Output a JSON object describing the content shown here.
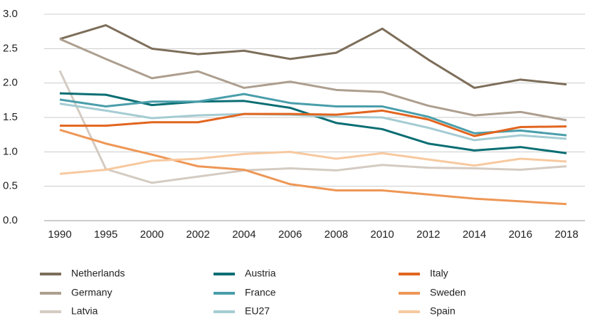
{
  "chart_data": {
    "type": "line",
    "categories": [
      "1990",
      "1995",
      "2000",
      "2002",
      "2004",
      "2006",
      "2008",
      "2010",
      "2012",
      "2014",
      "2016",
      "2018"
    ],
    "ylim": [
      0,
      3
    ],
    "yticks": [
      {
        "value": 0,
        "label": "0.0"
      },
      0.5,
      {
        "value": 1,
        "label": "1.0"
      },
      1.5,
      {
        "value": 2,
        "label": "2.0"
      },
      2.5,
      {
        "value": 3,
        "label": "3.0"
      }
    ],
    "grid": true,
    "series": [
      {
        "name": "Netherlands",
        "color": "#7d6e5a",
        "values": [
          2.64,
          2.84,
          2.5,
          2.42,
          2.47,
          2.35,
          2.44,
          2.79,
          2.34,
          1.93,
          2.05,
          1.98
        ]
      },
      {
        "name": "Germany",
        "color": "#ad9f8f",
        "values": [
          2.64,
          2.35,
          2.07,
          2.17,
          1.93,
          2.02,
          1.9,
          1.87,
          1.67,
          1.53,
          1.58,
          1.46
        ]
      },
      {
        "name": "Latvia",
        "color": "#d4cbc2",
        "values": [
          2.18,
          0.75,
          0.55,
          0.64,
          0.73,
          0.76,
          0.73,
          0.81,
          0.77,
          0.76,
          0.74,
          0.79
        ]
      },
      {
        "name": "Austria",
        "color": "#0a6e73",
        "values": [
          1.85,
          1.83,
          1.68,
          1.73,
          1.74,
          1.64,
          1.42,
          1.33,
          1.12,
          1.02,
          1.07,
          0.98
        ]
      },
      {
        "name": "France",
        "color": "#4a9eab",
        "values": [
          1.76,
          1.66,
          1.73,
          1.73,
          1.84,
          1.71,
          1.66,
          1.66,
          1.51,
          1.27,
          1.31,
          1.24
        ]
      },
      {
        "name": "EU27",
        "color": "#a5ccd3",
        "values": [
          1.7,
          1.6,
          1.49,
          1.53,
          1.55,
          1.54,
          1.51,
          1.5,
          1.35,
          1.17,
          1.24,
          1.19
        ]
      },
      {
        "name": "Italy",
        "color": "#e2651f",
        "values": [
          1.38,
          1.38,
          1.43,
          1.43,
          1.55,
          1.55,
          1.54,
          1.6,
          1.47,
          1.23,
          1.36,
          1.37
        ]
      },
      {
        "name": "Sweden",
        "color": "#ee9756",
        "values": [
          1.32,
          1.12,
          0.96,
          0.79,
          0.74,
          0.53,
          0.44,
          0.44,
          0.38,
          0.32,
          0.28,
          0.24
        ]
      },
      {
        "name": "Spain",
        "color": "#f7c9a0",
        "values": [
          0.68,
          0.74,
          0.87,
          0.9,
          0.97,
          1.0,
          0.9,
          0.98,
          0.89,
          0.8,
          0.9,
          0.86
        ]
      }
    ]
  }
}
